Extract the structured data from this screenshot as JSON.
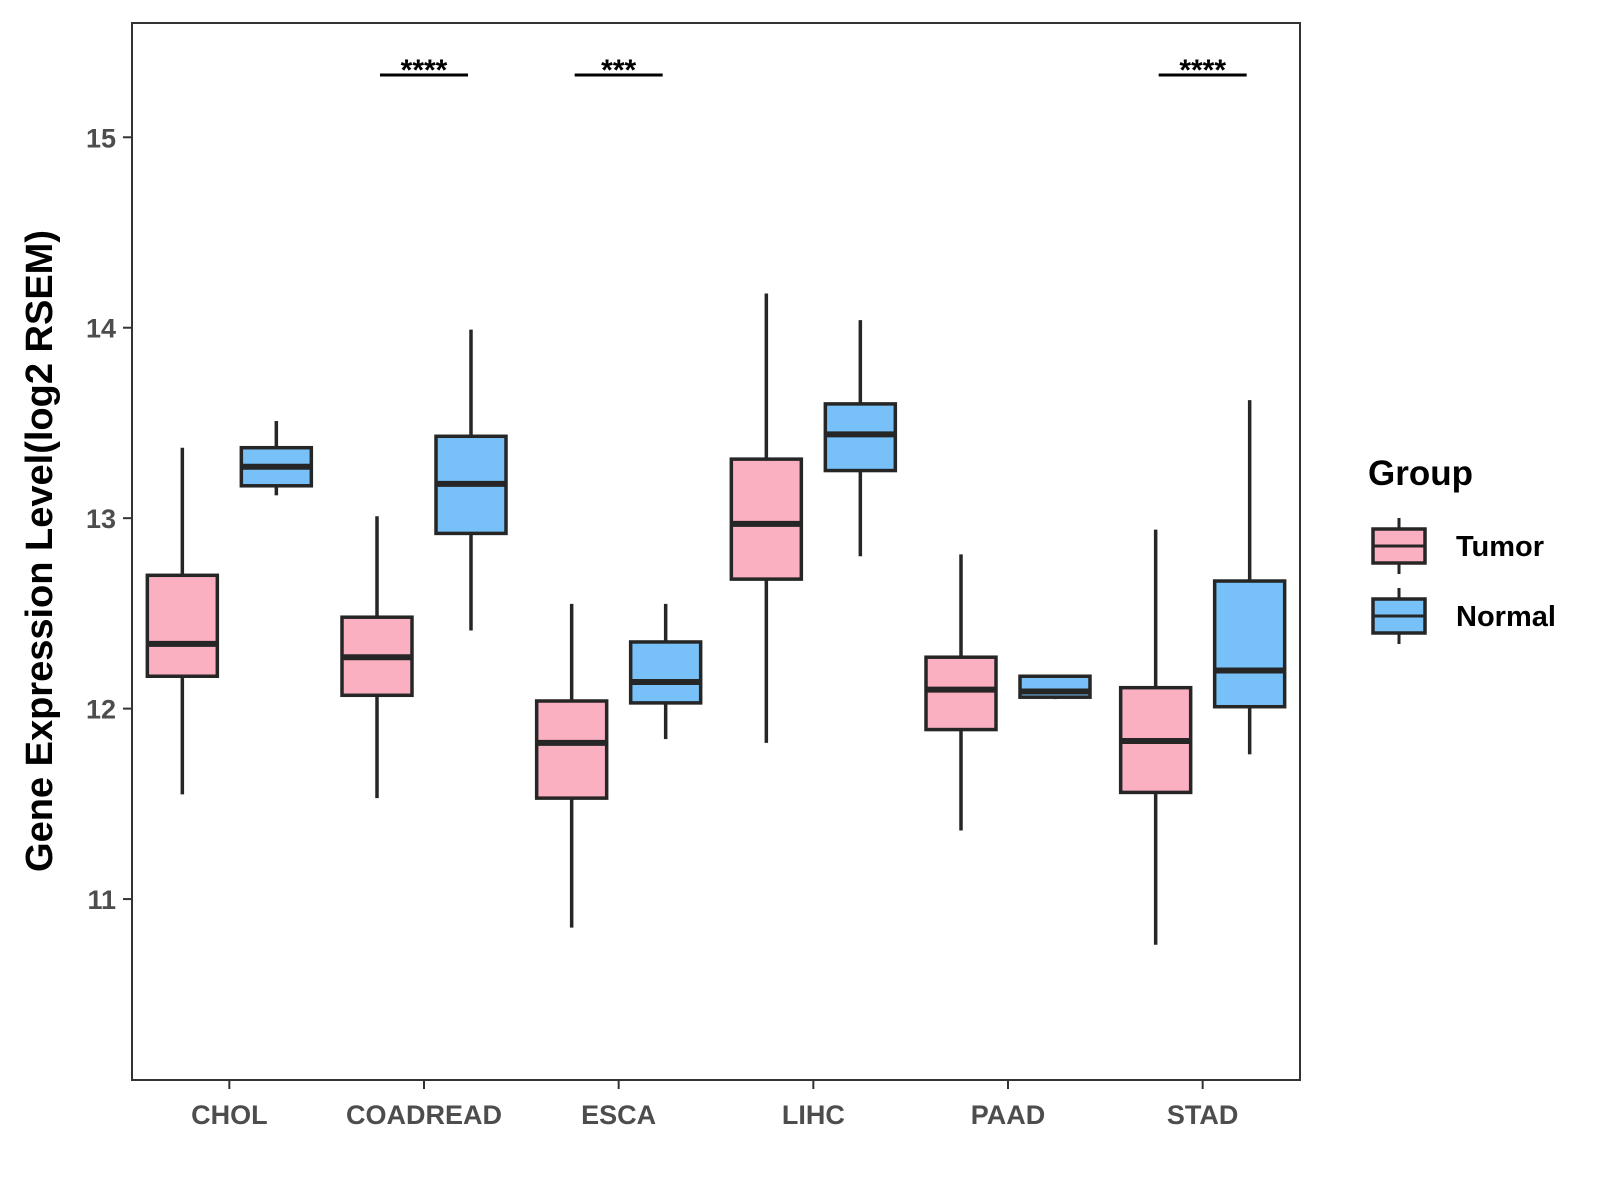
{
  "chart_data": {
    "type": "boxplot",
    "ylabel": "Gene Expression Level(log2 RSEM)",
    "xlabel": "",
    "ylim": [
      10.05,
      15.6
    ],
    "yticks": [
      11,
      12,
      13,
      14,
      15
    ],
    "categories": [
      "CHOL",
      "COADREAD",
      "ESCA",
      "LIHC",
      "PAAD",
      "STAD"
    ],
    "legend": {
      "title": "Group",
      "position": "right",
      "entries": [
        {
          "name": "Tumor",
          "color": "#FBB0C2"
        },
        {
          "name": "Normal",
          "color": "#77C1F8"
        }
      ]
    },
    "series": [
      {
        "name": "Tumor",
        "color": "#FBB0C2",
        "boxes": [
          {
            "min": 11.55,
            "q1": 12.17,
            "median": 12.34,
            "q3": 12.7,
            "max": 13.37
          },
          {
            "min": 11.53,
            "q1": 12.07,
            "median": 12.27,
            "q3": 12.48,
            "max": 13.01
          },
          {
            "min": 10.85,
            "q1": 11.53,
            "median": 11.82,
            "q3": 12.04,
            "max": 12.55
          },
          {
            "min": 11.82,
            "q1": 12.68,
            "median": 12.97,
            "q3": 13.31,
            "max": 14.18
          },
          {
            "min": 11.36,
            "q1": 11.89,
            "median": 12.1,
            "q3": 12.27,
            "max": 12.81
          },
          {
            "min": 10.76,
            "q1": 11.56,
            "median": 11.83,
            "q3": 12.11,
            "max": 12.94
          }
        ]
      },
      {
        "name": "Normal",
        "color": "#77C1F8",
        "boxes": [
          {
            "min": 13.12,
            "q1": 13.17,
            "median": 13.27,
            "q3": 13.37,
            "max": 13.51
          },
          {
            "min": 12.41,
            "q1": 12.92,
            "median": 13.18,
            "q3": 13.43,
            "max": 13.99
          },
          {
            "min": 11.84,
            "q1": 12.03,
            "median": 12.14,
            "q3": 12.35,
            "max": 12.55
          },
          {
            "min": 12.8,
            "q1": 13.25,
            "median": 13.44,
            "q3": 13.6,
            "max": 14.04
          },
          {
            "min": 12.05,
            "q1": 12.06,
            "median": 12.09,
            "q3": 12.17,
            "max": 12.17
          },
          {
            "min": 11.76,
            "q1": 12.01,
            "median": 12.2,
            "q3": 12.67,
            "max": 13.62
          }
        ]
      }
    ],
    "annotations": [
      {
        "category": "COADREAD",
        "label": "****"
      },
      {
        "category": "ESCA",
        "label": "***"
      },
      {
        "category": "STAD",
        "label": "****"
      }
    ]
  }
}
